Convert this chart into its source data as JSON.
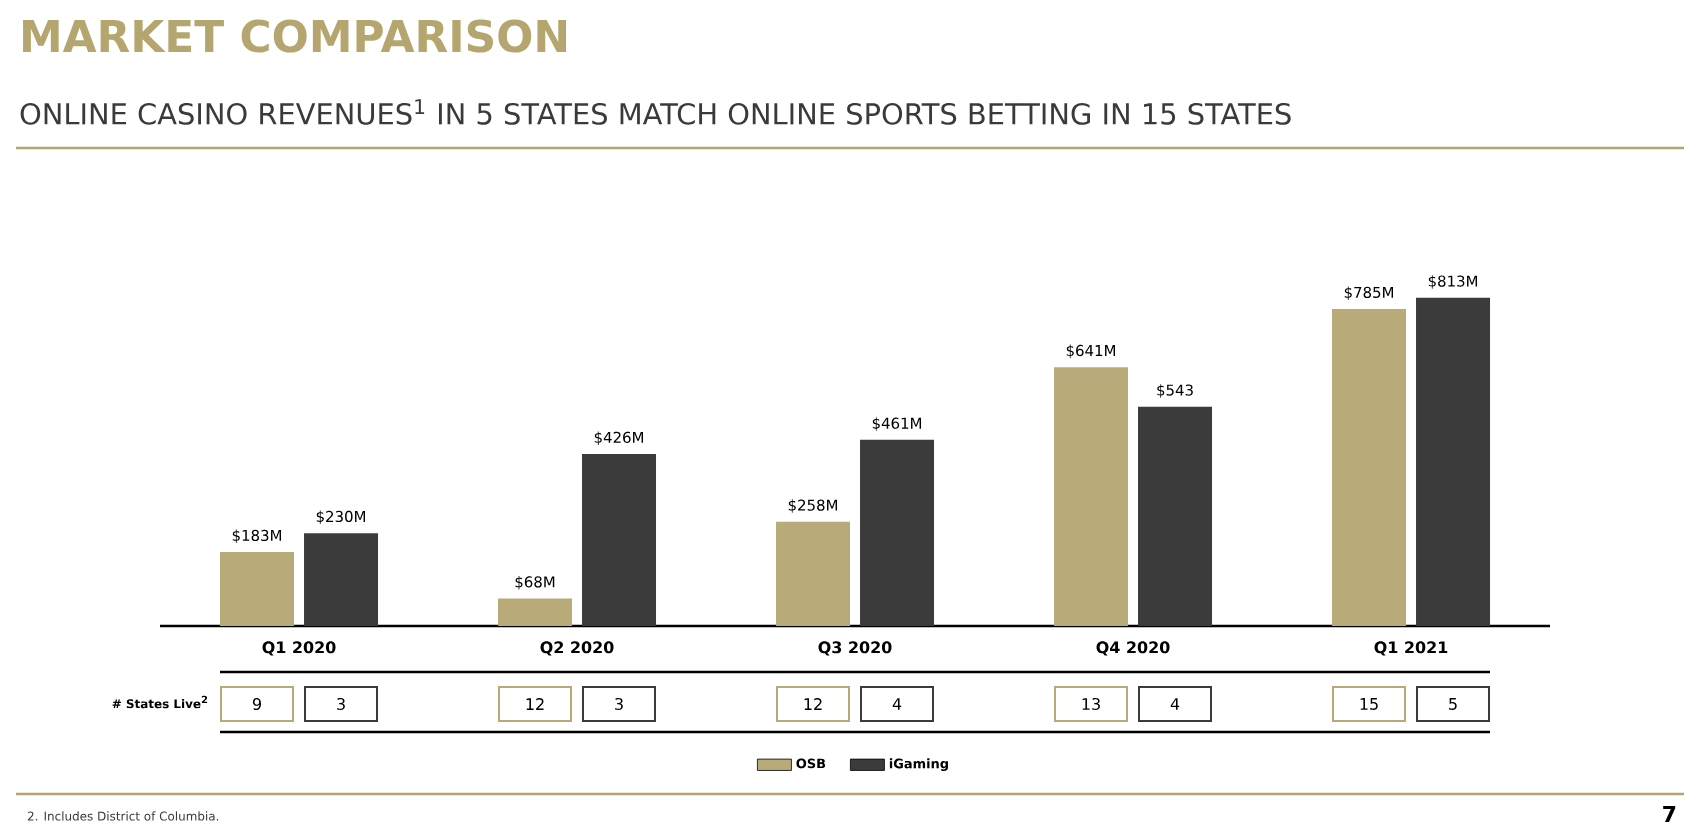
{
  "chart_data": {
    "type": "bar",
    "title": "MARKET COMPARISON",
    "subtitle": "ONLINE CASINO REVENUES$^{1}$ IN 5 STATES MATCH ONLINE SPORTS BETTING IN 15 STATES",
    "categories": [
      "Q1 2020",
      "Q2 2020",
      "Q3 2020",
      "Q4 2020",
      "Q1 2021"
    ],
    "series": [
      {
        "name": "OSB",
        "color": "#b9aa79",
        "values": [
          183,
          68,
          258,
          641,
          785
        ],
        "value_labels": [
          "$183M",
          "$68M",
          "$258M",
          "$641M",
          "$785M"
        ]
      },
      {
        "name": "iGaming",
        "color": "#3b3b3b",
        "values": [
          230,
          426,
          461,
          543,
          813
        ],
        "value_labels": [
          "$230M",
          "$426M",
          "$461M",
          "$543",
          "$813M"
        ]
      }
    ],
    "legend": "bottom",
    "annotations": [
      "# States Live$^{2}$",
      "9",
      "3",
      "12",
      "3",
      "12",
      "4",
      "13",
      "4",
      "15",
      "5",
      "2. Includes District of Columbia.",
      "7"
    ]
  }
}
